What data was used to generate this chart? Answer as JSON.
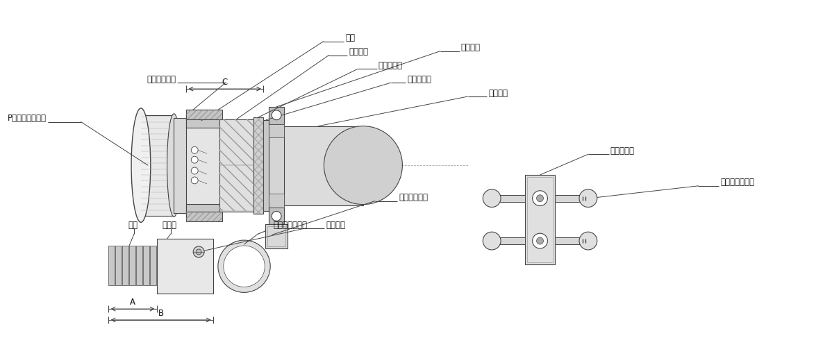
{
  "bg_color": "#ffffff",
  "line_color": "#444444",
  "labels": {
    "tanshi": "端子",
    "cord_tube": "コード管",
    "gasket": "ガスケット",
    "washer": "ワッシャー",
    "fastener": "締付金具",
    "coupling": "カップリング",
    "p_shell": "Pシェルユニット",
    "cable": "ケーブル",
    "clamp": "クランプ片",
    "cord_screw": "コード締付ビス",
    "spanner": "スパナ掛け部",
    "stop_screw": "止めビス",
    "conductor": "導体",
    "insulator": "絶縁体",
    "cable_sheath": "ケーブルシース",
    "dim_A": "A",
    "dim_B": "B",
    "dim_C": "C"
  },
  "figsize": [
    11.98,
    5.0
  ],
  "dpi": 100
}
